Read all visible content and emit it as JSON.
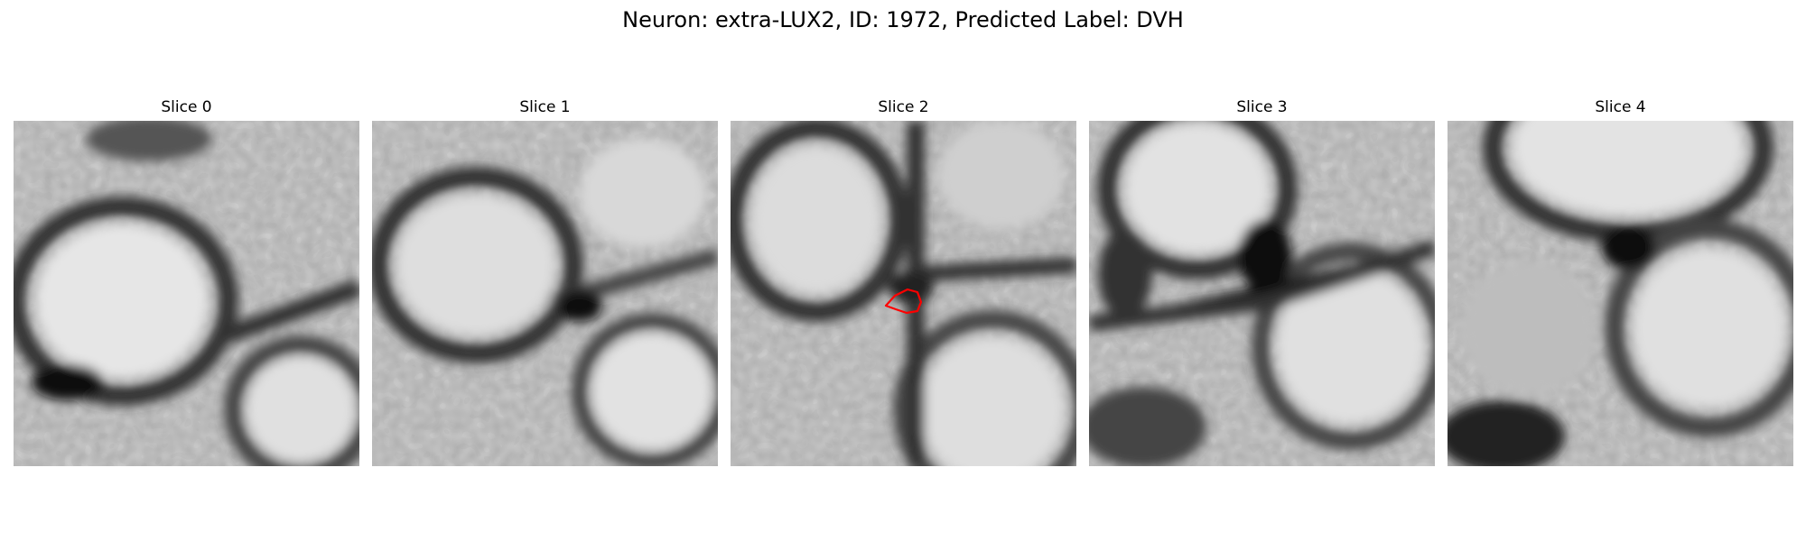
{
  "figure": {
    "title": "Neuron: extra-LUX2, ID: 1972, Predicted Label: DVH"
  },
  "panels": [
    {
      "title": "Slice 0"
    },
    {
      "title": "Slice 1"
    },
    {
      "title": "Slice 2"
    },
    {
      "title": "Slice 3"
    },
    {
      "title": "Slice 4"
    }
  ],
  "overlay": {
    "slice": "Slice 2",
    "color": "#ff0000",
    "shape": "outlined contour"
  },
  "image": {
    "colormap": "grayscale"
  }
}
